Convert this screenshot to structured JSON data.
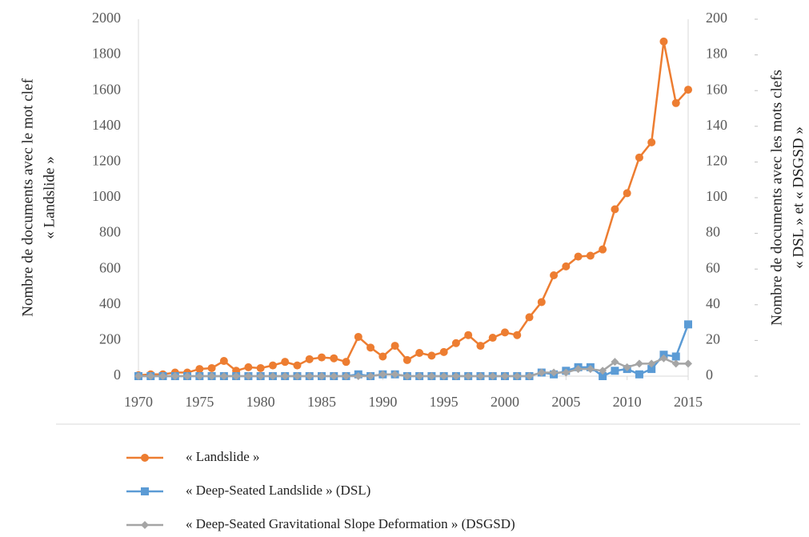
{
  "chart_data": {
    "type": "line",
    "ylabel": [
      "Nombre de documents avec le mot clef",
      "« Landslide »"
    ],
    "y2label": [
      "Nombre de documents avec les mots clefs",
      "« DSL » et « DSGSD »"
    ],
    "x": [
      1970,
      1971,
      1972,
      1973,
      1974,
      1975,
      1976,
      1977,
      1978,
      1979,
      1980,
      1981,
      1982,
      1983,
      1984,
      1985,
      1986,
      1987,
      1988,
      1989,
      1990,
      1991,
      1992,
      1993,
      1994,
      1995,
      1996,
      1997,
      1998,
      1999,
      2000,
      2001,
      2002,
      2003,
      2004,
      2005,
      2006,
      2007,
      2008,
      2009,
      2010,
      2011,
      2012,
      2013,
      2014,
      2015
    ],
    "xlim": [
      1970,
      2015
    ],
    "xticks": [
      1970,
      1975,
      1980,
      1985,
      1990,
      1995,
      2000,
      2005,
      2010,
      2015
    ],
    "ylim": [
      0,
      2000
    ],
    "yticks": [
      0,
      200,
      400,
      600,
      800,
      1000,
      1200,
      1400,
      1600,
      1800,
      2000
    ],
    "y2lim": [
      0,
      200
    ],
    "y2ticks": [
      0,
      20,
      40,
      60,
      80,
      100,
      120,
      140,
      160,
      180,
      200
    ],
    "series": [
      {
        "name": "« Landslide »",
        "color": "#ed7d31",
        "marker": "circle",
        "values": [
          5,
          10,
          10,
          20,
          20,
          40,
          45,
          85,
          30,
          50,
          45,
          60,
          80,
          60,
          95,
          105,
          100,
          80,
          220,
          160,
          110,
          170,
          90,
          130,
          115,
          135,
          185,
          230,
          170,
          215,
          245,
          230,
          330,
          415,
          565,
          615,
          670,
          675,
          710,
          935,
          1025,
          1225,
          1310,
          1875,
          1530,
          1605
        ]
      },
      {
        "name": "« Deep-Seated  Landslide  » (DSL)",
        "color": "#5b9bd5",
        "marker": "square",
        "axis": "y2",
        "values": [
          0,
          0,
          0,
          0,
          0,
          0,
          0,
          0,
          0,
          0,
          0,
          0,
          0,
          0,
          0,
          0,
          0,
          0,
          1,
          0,
          1,
          1,
          0,
          0,
          0,
          0,
          0,
          0,
          0,
          0,
          0,
          0,
          0,
          2,
          1,
          3,
          5,
          5,
          0,
          3,
          4,
          1,
          4,
          12,
          11,
          29
        ]
      },
      {
        "name": "« Deep-Seated  Gravitational  Slope  Deformation  » (DSGSD)",
        "color": "#a5a5a5",
        "marker": "diamond",
        "axis": "y2",
        "values": [
          0,
          0,
          0,
          0,
          0,
          0,
          0,
          0,
          0,
          0,
          0,
          0,
          0,
          0,
          0,
          0,
          0,
          0,
          0,
          0,
          1,
          1,
          0,
          0,
          0,
          0,
          0,
          0,
          0,
          0,
          0,
          0,
          0,
          2,
          2,
          2,
          4,
          4,
          3,
          8,
          5,
          7,
          7,
          10,
          7,
          7
        ]
      }
    ]
  }
}
